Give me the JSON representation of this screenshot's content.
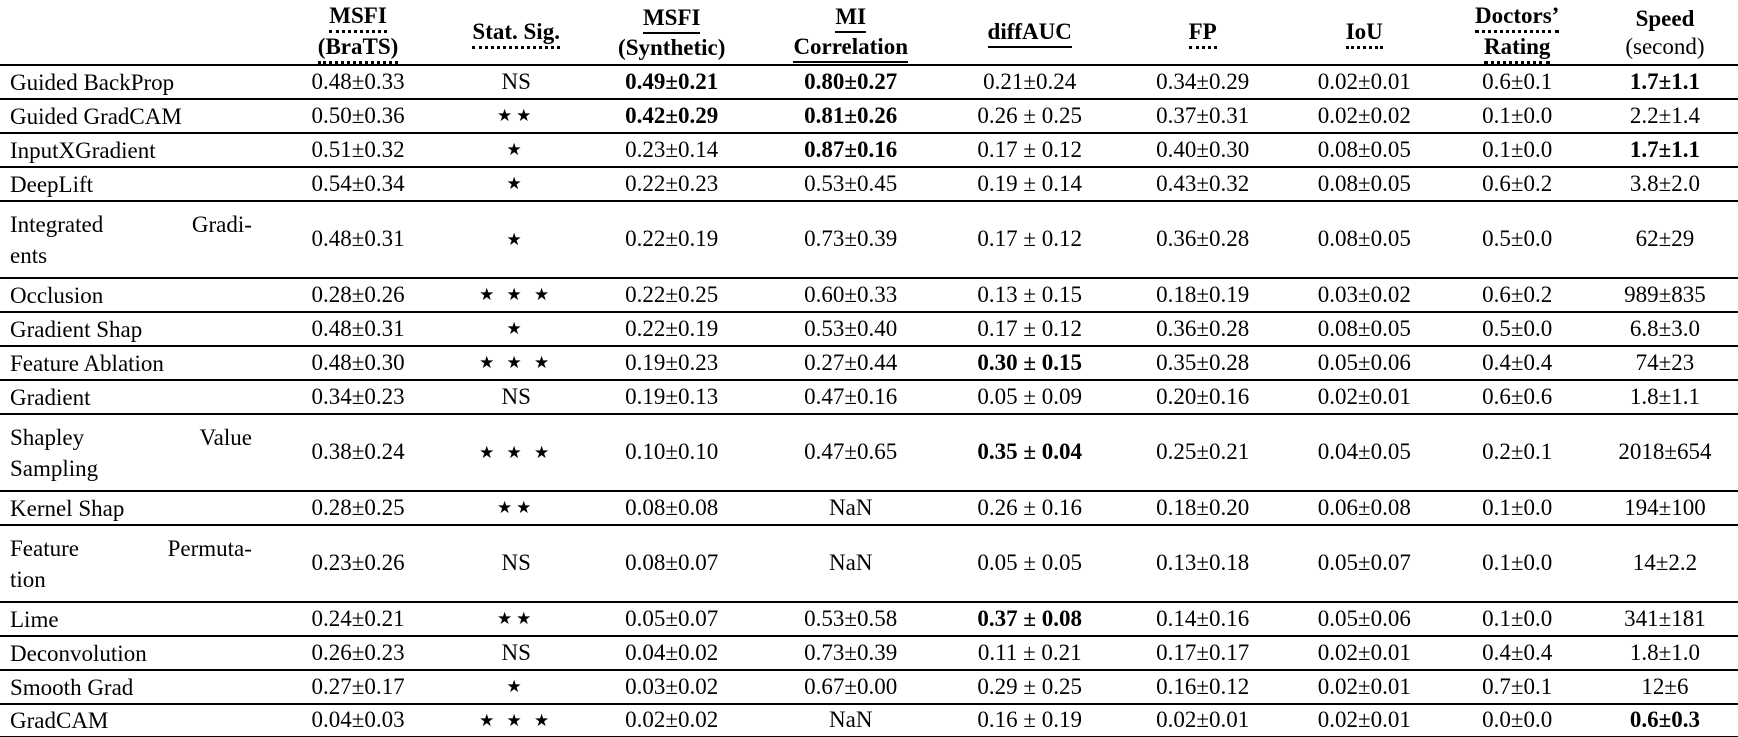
{
  "table": {
    "title": "XAI methods comparison table",
    "columns": [
      {
        "id": "method",
        "lines": []
      },
      {
        "id": "msfi-brats",
        "lines": [
          {
            "text": "MSFI",
            "underline": "dotted",
            "bold": true
          },
          {
            "text": "(BraTS)",
            "underline": "dotted",
            "bold": true
          }
        ]
      },
      {
        "id": "stat-sig",
        "lines": [
          {
            "text": "Stat. Sig.",
            "underline": "dotted",
            "bold": true
          }
        ]
      },
      {
        "id": "msfi-synthetic",
        "lines": [
          {
            "text": "MSFI",
            "underline": "solid",
            "bold": true
          },
          {
            "text": "(Synthetic)",
            "underline": "none",
            "bold": true
          }
        ]
      },
      {
        "id": "mi-correlation",
        "lines": [
          {
            "text": "MI",
            "underline": "solid",
            "bold": true
          },
          {
            "text": "Correlation",
            "underline": "solid",
            "bold": true
          }
        ]
      },
      {
        "id": "diffauc",
        "lines": [
          {
            "text": "diffAUC",
            "underline": "solid",
            "bold": true
          }
        ]
      },
      {
        "id": "fp",
        "lines": [
          {
            "text": "FP",
            "underline": "dotted",
            "bold": true
          }
        ]
      },
      {
        "id": "iou",
        "lines": [
          {
            "text": "IoU",
            "underline": "dotted",
            "bold": true
          }
        ]
      },
      {
        "id": "doctors-rating",
        "lines": [
          {
            "text": "Doctors’",
            "underline": "dotted",
            "bold": true
          },
          {
            "text": "Rating",
            "underline": "dotted",
            "bold": true
          }
        ]
      },
      {
        "id": "speed",
        "lines": [
          {
            "text": "Speed",
            "underline": "none",
            "bold": true
          },
          {
            "text": "(second)",
            "underline": "none",
            "bold": false
          }
        ]
      }
    ],
    "col_widths": [
      "15.3%",
      "10.6%",
      "7.6%",
      "10.3%",
      "10.3%",
      "10.3%",
      "9.6%",
      "9.0%",
      "8.6%",
      "8.4%"
    ],
    "rows": [
      {
        "method": {
          "line1": [
            "Guided BackProp"
          ],
          "line2": ""
        },
        "cells": [
          {
            "text": "0.48±0.33",
            "bold": false
          },
          {
            "text": "NS",
            "bold": false,
            "stars": false
          },
          {
            "text": "0.49±0.21",
            "bold": true
          },
          {
            "text": "0.80±0.27",
            "bold": true
          },
          {
            "text": "0.21±0.24",
            "bold": false
          },
          {
            "text": "0.34±0.29",
            "bold": false
          },
          {
            "text": "0.02±0.01",
            "bold": false
          },
          {
            "text": "0.6±0.1",
            "bold": false
          },
          {
            "text": "1.7±1.1",
            "bold": true
          }
        ]
      },
      {
        "method": {
          "line1": [
            "Guided GradCAM"
          ],
          "line2": ""
        },
        "cells": [
          {
            "text": "0.50±0.36",
            "bold": false
          },
          {
            "text": "★★",
            "bold": false,
            "stars": true
          },
          {
            "text": "0.42±0.29",
            "bold": true
          },
          {
            "text": "0.81±0.26",
            "bold": true
          },
          {
            "text": "0.26 ± 0.25",
            "bold": false
          },
          {
            "text": "0.37±0.31",
            "bold": false
          },
          {
            "text": "0.02±0.02",
            "bold": false
          },
          {
            "text": "0.1±0.0",
            "bold": false
          },
          {
            "text": "2.2±1.4",
            "bold": false
          }
        ]
      },
      {
        "method": {
          "line1": [
            "InputXGradient"
          ],
          "line2": ""
        },
        "cells": [
          {
            "text": "0.51±0.32",
            "bold": false
          },
          {
            "text": "★",
            "bold": false,
            "stars": true
          },
          {
            "text": "0.23±0.14",
            "bold": false
          },
          {
            "text": "0.87±0.16",
            "bold": true
          },
          {
            "text": "0.17 ± 0.12",
            "bold": false
          },
          {
            "text": "0.40±0.30",
            "bold": false
          },
          {
            "text": "0.08±0.05",
            "bold": false
          },
          {
            "text": "0.1±0.0",
            "bold": false
          },
          {
            "text": "1.7±1.1",
            "bold": true
          }
        ]
      },
      {
        "method": {
          "line1": [
            "DeepLift"
          ],
          "line2": ""
        },
        "cells": [
          {
            "text": "0.54±0.34",
            "bold": false
          },
          {
            "text": "★",
            "bold": false,
            "stars": true
          },
          {
            "text": "0.22±0.23",
            "bold": false
          },
          {
            "text": "0.53±0.45",
            "bold": false
          },
          {
            "text": "0.19 ± 0.14",
            "bold": false
          },
          {
            "text": "0.43±0.32",
            "bold": false
          },
          {
            "text": "0.08±0.05",
            "bold": false
          },
          {
            "text": "0.6±0.2",
            "bold": false
          },
          {
            "text": "3.8±2.0",
            "bold": false
          }
        ]
      },
      {
        "method": {
          "line1": [
            "Integrated",
            "Gradi-"
          ],
          "line2": "ents"
        },
        "cells": [
          {
            "text": "0.48±0.31",
            "bold": false
          },
          {
            "text": "★",
            "bold": false,
            "stars": true
          },
          {
            "text": "0.22±0.19",
            "bold": false
          },
          {
            "text": "0.73±0.39",
            "bold": false
          },
          {
            "text": "0.17 ± 0.12",
            "bold": false
          },
          {
            "text": "0.36±0.28",
            "bold": false
          },
          {
            "text": "0.08±0.05",
            "bold": false
          },
          {
            "text": "0.5±0.0",
            "bold": false
          },
          {
            "text": "62±29",
            "bold": false
          }
        ]
      },
      {
        "method": {
          "line1": [
            "Occlusion"
          ],
          "line2": ""
        },
        "cells": [
          {
            "text": "0.28±0.26",
            "bold": false
          },
          {
            "text": "★ ★ ★",
            "bold": false,
            "stars": true
          },
          {
            "text": "0.22±0.25",
            "bold": false
          },
          {
            "text": "0.60±0.33",
            "bold": false
          },
          {
            "text": "0.13 ± 0.15",
            "bold": false
          },
          {
            "text": "0.18±0.19",
            "bold": false
          },
          {
            "text": "0.03±0.02",
            "bold": false
          },
          {
            "text": "0.6±0.2",
            "bold": false
          },
          {
            "text": "989±835",
            "bold": false
          }
        ]
      },
      {
        "method": {
          "line1": [
            "Gradient Shap"
          ],
          "line2": ""
        },
        "cells": [
          {
            "text": "0.48±0.31",
            "bold": false
          },
          {
            "text": "★",
            "bold": false,
            "stars": true
          },
          {
            "text": "0.22±0.19",
            "bold": false
          },
          {
            "text": "0.53±0.40",
            "bold": false
          },
          {
            "text": "0.17 ± 0.12",
            "bold": false
          },
          {
            "text": "0.36±0.28",
            "bold": false
          },
          {
            "text": "0.08±0.05",
            "bold": false
          },
          {
            "text": "0.5±0.0",
            "bold": false
          },
          {
            "text": "6.8±3.0",
            "bold": false
          }
        ]
      },
      {
        "method": {
          "line1": [
            "Feature Ablation"
          ],
          "line2": ""
        },
        "cells": [
          {
            "text": "0.48±0.30",
            "bold": false
          },
          {
            "text": "★ ★ ★",
            "bold": false,
            "stars": true
          },
          {
            "text": "0.19±0.23",
            "bold": false
          },
          {
            "text": "0.27±0.44",
            "bold": false
          },
          {
            "text": "0.30 ± 0.15",
            "bold": true
          },
          {
            "text": "0.35±0.28",
            "bold": false
          },
          {
            "text": "0.05±0.06",
            "bold": false
          },
          {
            "text": "0.4±0.4",
            "bold": false
          },
          {
            "text": "74±23",
            "bold": false
          }
        ]
      },
      {
        "method": {
          "line1": [
            "Gradient"
          ],
          "line2": ""
        },
        "cells": [
          {
            "text": "0.34±0.23",
            "bold": false
          },
          {
            "text": "NS",
            "bold": false,
            "stars": false
          },
          {
            "text": "0.19±0.13",
            "bold": false
          },
          {
            "text": "0.47±0.16",
            "bold": false
          },
          {
            "text": "0.05 ± 0.09",
            "bold": false
          },
          {
            "text": "0.20±0.16",
            "bold": false
          },
          {
            "text": "0.02±0.01",
            "bold": false
          },
          {
            "text": "0.6±0.6",
            "bold": false
          },
          {
            "text": "1.8±1.1",
            "bold": false
          }
        ]
      },
      {
        "method": {
          "line1": [
            "Shapley",
            "Value"
          ],
          "line2": "Sampling"
        },
        "cells": [
          {
            "text": "0.38±0.24",
            "bold": false
          },
          {
            "text": "★ ★ ★",
            "bold": false,
            "stars": true
          },
          {
            "text": "0.10±0.10",
            "bold": false
          },
          {
            "text": "0.47±0.65",
            "bold": false
          },
          {
            "text": "0.35 ± 0.04",
            "bold": true
          },
          {
            "text": "0.25±0.21",
            "bold": false
          },
          {
            "text": "0.04±0.05",
            "bold": false
          },
          {
            "text": "0.2±0.1",
            "bold": false
          },
          {
            "text": "2018±654",
            "bold": false
          }
        ]
      },
      {
        "method": {
          "line1": [
            "Kernel Shap"
          ],
          "line2": ""
        },
        "cells": [
          {
            "text": "0.28±0.25",
            "bold": false
          },
          {
            "text": "★★",
            "bold": false,
            "stars": true
          },
          {
            "text": "0.08±0.08",
            "bold": false
          },
          {
            "text": "NaN",
            "bold": false
          },
          {
            "text": "0.26 ± 0.16",
            "bold": false
          },
          {
            "text": "0.18±0.20",
            "bold": false
          },
          {
            "text": "0.06±0.08",
            "bold": false
          },
          {
            "text": "0.1±0.0",
            "bold": false
          },
          {
            "text": "194±100",
            "bold": false
          }
        ]
      },
      {
        "method": {
          "line1": [
            "Feature",
            "Permuta-"
          ],
          "line2": "tion"
        },
        "cells": [
          {
            "text": "0.23±0.26",
            "bold": false
          },
          {
            "text": "NS",
            "bold": false,
            "stars": false
          },
          {
            "text": "0.08±0.07",
            "bold": false
          },
          {
            "text": "NaN",
            "bold": false
          },
          {
            "text": "0.05 ± 0.05",
            "bold": false
          },
          {
            "text": "0.13±0.18",
            "bold": false
          },
          {
            "text": "0.05±0.07",
            "bold": false
          },
          {
            "text": "0.1±0.0",
            "bold": false
          },
          {
            "text": "14±2.2",
            "bold": false
          }
        ]
      },
      {
        "method": {
          "line1": [
            "Lime"
          ],
          "line2": ""
        },
        "cells": [
          {
            "text": "0.24±0.21",
            "bold": false
          },
          {
            "text": "★★",
            "bold": false,
            "stars": true
          },
          {
            "text": "0.05±0.07",
            "bold": false
          },
          {
            "text": "0.53±0.58",
            "bold": false
          },
          {
            "text": "0.37 ± 0.08",
            "bold": true
          },
          {
            "text": "0.14±0.16",
            "bold": false
          },
          {
            "text": "0.05±0.06",
            "bold": false
          },
          {
            "text": "0.1±0.0",
            "bold": false
          },
          {
            "text": "341±181",
            "bold": false
          }
        ]
      },
      {
        "method": {
          "line1": [
            "Deconvolution"
          ],
          "line2": ""
        },
        "cells": [
          {
            "text": "0.26±0.23",
            "bold": false
          },
          {
            "text": "NS",
            "bold": false,
            "stars": false
          },
          {
            "text": "0.04±0.02",
            "bold": false
          },
          {
            "text": "0.73±0.39",
            "bold": false
          },
          {
            "text": "0.11 ± 0.21",
            "bold": false
          },
          {
            "text": "0.17±0.17",
            "bold": false
          },
          {
            "text": "0.02±0.01",
            "bold": false
          },
          {
            "text": "0.4±0.4",
            "bold": false
          },
          {
            "text": "1.8±1.0",
            "bold": false
          }
        ]
      },
      {
        "method": {
          "line1": [
            "Smooth Grad"
          ],
          "line2": ""
        },
        "cells": [
          {
            "text": "0.27±0.17",
            "bold": false
          },
          {
            "text": "★",
            "bold": false,
            "stars": true
          },
          {
            "text": "0.03±0.02",
            "bold": false
          },
          {
            "text": "0.67±0.00",
            "bold": false
          },
          {
            "text": "0.29 ± 0.25",
            "bold": false
          },
          {
            "text": "0.16±0.12",
            "bold": false
          },
          {
            "text": "0.02±0.01",
            "bold": false
          },
          {
            "text": "0.7±0.1",
            "bold": false
          },
          {
            "text": "12±6",
            "bold": false
          }
        ]
      },
      {
        "method": {
          "line1": [
            "GradCAM"
          ],
          "line2": ""
        },
        "cells": [
          {
            "text": "0.04±0.03",
            "bold": false
          },
          {
            "text": "★ ★ ★",
            "bold": false,
            "stars": true
          },
          {
            "text": "0.02±0.02",
            "bold": false
          },
          {
            "text": "NaN",
            "bold": false
          },
          {
            "text": "0.16 ± 0.19",
            "bold": false
          },
          {
            "text": "0.02±0.01",
            "bold": false
          },
          {
            "text": "0.02±0.01",
            "bold": false
          },
          {
            "text": "0.0±0.0",
            "bold": false
          },
          {
            "text": "0.6±0.3",
            "bold": true
          }
        ]
      }
    ]
  }
}
